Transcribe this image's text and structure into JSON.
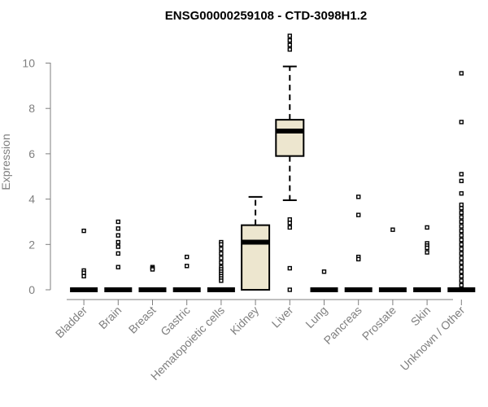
{
  "chart_data": {
    "type": "boxplot",
    "title": "ENSG00000259108 - CTD-3098H1.2",
    "xlabel": "",
    "ylabel": "Expression",
    "ylim": [
      0,
      11.3
    ],
    "yticks": [
      0,
      2,
      4,
      6,
      8,
      10
    ],
    "box_fill": "#ede6cf",
    "categories": [
      "Bladder",
      "Brain",
      "Breast",
      "Gastric",
      "Hematopoietic cells",
      "Kidney",
      "Liver",
      "Lung",
      "Pancreas",
      "Prostate",
      "Skin",
      "Unknown / Other"
    ],
    "series": [
      {
        "category": "Bladder",
        "q1": 0,
        "median": 0,
        "q3": 0,
        "whisker_low": 0,
        "whisker_high": 0,
        "outliers": [
          2.6,
          0.85,
          0.75,
          0.6
        ]
      },
      {
        "category": "Brain",
        "q1": 0,
        "median": 0,
        "q3": 0,
        "whisker_low": 0,
        "whisker_high": 0,
        "outliers": [
          3.0,
          2.7,
          2.4,
          2.1,
          1.9,
          1.6,
          1.0
        ]
      },
      {
        "category": "Breast",
        "q1": 0,
        "median": 0,
        "q3": 0,
        "whisker_low": 0,
        "whisker_high": 0,
        "outliers": [
          1.0,
          0.95,
          0.9
        ]
      },
      {
        "category": "Gastric",
        "q1": 0,
        "median": 0,
        "q3": 0,
        "whisker_low": 0,
        "whisker_high": 0,
        "outliers": [
          1.45,
          1.05
        ]
      },
      {
        "category": "Hematopoietic cells",
        "q1": 0,
        "median": 0,
        "q3": 0,
        "whisker_low": 0,
        "whisker_high": 0,
        "outliers": [
          2.1,
          2.0,
          1.8,
          1.6,
          1.4,
          1.2,
          1.0,
          0.9,
          0.8,
          0.7,
          0.6,
          0.5,
          0.4
        ]
      },
      {
        "category": "Kidney",
        "q1": 0,
        "median": 2.1,
        "q3": 2.85,
        "whisker_low": 0,
        "whisker_high": 4.1,
        "outliers": []
      },
      {
        "category": "Liver",
        "q1": 5.9,
        "median": 7.0,
        "q3": 7.5,
        "whisker_low": 3.95,
        "whisker_high": 9.85,
        "outliers": [
          11.2,
          11.0,
          10.8,
          10.6,
          3.1,
          2.95,
          2.75,
          0.95,
          0.0
        ]
      },
      {
        "category": "Lung",
        "q1": 0,
        "median": 0,
        "q3": 0,
        "whisker_low": 0,
        "whisker_high": 0,
        "outliers": [
          0.8
        ]
      },
      {
        "category": "Pancreas",
        "q1": 0,
        "median": 0,
        "q3": 0,
        "whisker_low": 0,
        "whisker_high": 0,
        "outliers": [
          4.1,
          3.3,
          1.45,
          1.35
        ]
      },
      {
        "category": "Prostate",
        "q1": 0,
        "median": 0,
        "q3": 0,
        "whisker_low": 0,
        "whisker_high": 0,
        "outliers": [
          2.65
        ]
      },
      {
        "category": "Skin",
        "q1": 0,
        "median": 0,
        "q3": 0,
        "whisker_low": 0,
        "whisker_high": 0,
        "outliers": [
          2.75,
          2.05,
          1.95,
          1.85,
          1.65
        ]
      },
      {
        "category": "Unknown / Other",
        "q1": 0,
        "median": 0,
        "q3": 0,
        "whisker_low": 0,
        "whisker_high": 0,
        "outliers": [
          9.55,
          7.4,
          5.1,
          4.8,
          4.25,
          3.75,
          3.6,
          3.4,
          3.2,
          3.0,
          2.8,
          2.6,
          2.4,
          2.2,
          2.0,
          1.8,
          1.6,
          1.4,
          1.2,
          1.0,
          0.8,
          0.6,
          0.4,
          0.2
        ]
      }
    ]
  }
}
